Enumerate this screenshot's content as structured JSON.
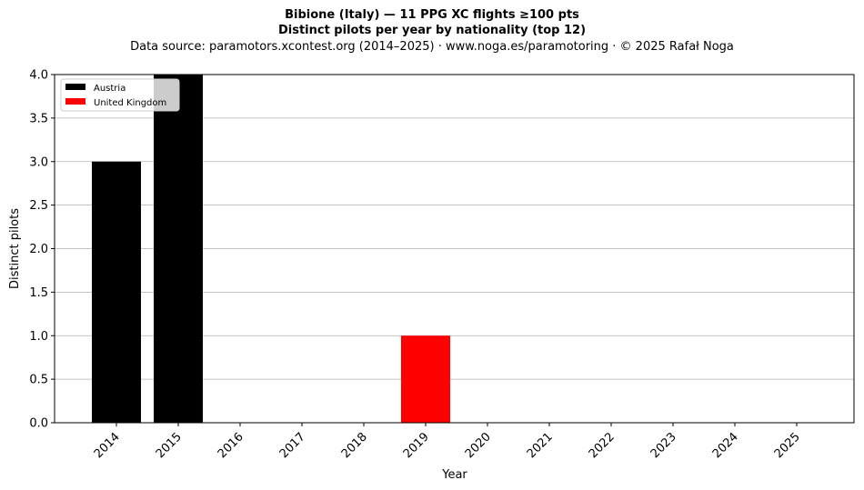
{
  "header": {
    "title": "Bibione (Italy)  —  11 PPG XC flights ≥100 pts",
    "subtitle": "Distinct pilots per year by nationality (top 12)",
    "source": "Data source: paramotors.xcontest.org (2014–2025)  ·  www.noga.es/paramotoring  ·  © 2025 Rafał Noga"
  },
  "chart_data": {
    "type": "bar",
    "stacked": true,
    "xlabel": "Year",
    "ylabel": "Distinct pilots",
    "categories": [
      "2014",
      "2015",
      "2016",
      "2017",
      "2018",
      "2019",
      "2020",
      "2021",
      "2022",
      "2023",
      "2024",
      "2025"
    ],
    "ylim": [
      0,
      4
    ],
    "yticks": [
      "0.0",
      "0.5",
      "1.0",
      "1.5",
      "2.0",
      "2.5",
      "3.0",
      "3.5",
      "4.0"
    ],
    "grid": "y",
    "legend_position": "top-left",
    "series": [
      {
        "name": "Austria",
        "color": "#000000",
        "values": [
          3,
          4,
          0,
          0,
          0,
          0,
          0,
          0,
          0,
          0,
          0,
          0
        ]
      },
      {
        "name": "United Kingdom",
        "color": "#ff0000",
        "values": [
          0,
          0,
          0,
          0,
          0,
          1,
          0,
          0,
          0,
          0,
          0,
          0
        ]
      }
    ]
  }
}
